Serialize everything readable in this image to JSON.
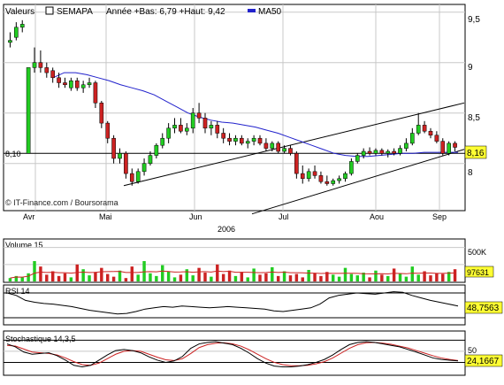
{
  "header": {
    "valeurs_label": "Valeurs",
    "ticker": "SEMAPA",
    "range_text": "Année +Bas: 6,79 +Haut: 9,42",
    "ma_label": "MA50"
  },
  "colors": {
    "up": "#22cc22",
    "down": "#cc2222",
    "ma": "#2222cc",
    "line": "#000000",
    "signal": "#cc2222",
    "grid": "#c8c8c8",
    "label_box": "#ffff33"
  },
  "price": {
    "y_ticks": [
      "9,5",
      "9",
      "8,5",
      "8"
    ],
    "ref_label": "8,10",
    "last_label": "8,16",
    "watermark": "© IT-Finance.com / Boursorama",
    "x_months": [
      "Avr",
      "Mai",
      "Jun",
      "Jul",
      "Aou",
      "Sep"
    ],
    "year_label": "2006"
  },
  "volume": {
    "title": "Volume 15",
    "tick": "500K",
    "last_label": "97631"
  },
  "rsi": {
    "title": "RSI 14",
    "last_label": "48,7563"
  },
  "stoch": {
    "title": "Stochastique 14,3,5",
    "tick": "50",
    "last_label": "24,1667"
  },
  "chart_data": {
    "type": "candlestick",
    "price_ylim": [
      7.55,
      9.55
    ],
    "reference_level": 8.1,
    "last_close": 8.16,
    "candles": [
      [
        9.2,
        9.3,
        9.15,
        9.22
      ],
      [
        9.25,
        9.4,
        9.22,
        9.35
      ],
      [
        9.35,
        9.42,
        9.3,
        9.38
      ],
      [
        8.1,
        8.95,
        8.1,
        8.95
      ],
      [
        8.95,
        9.15,
        8.9,
        9.0
      ],
      [
        9.0,
        9.12,
        8.9,
        8.95
      ],
      [
        8.95,
        9.0,
        8.85,
        8.9
      ],
      [
        8.92,
        8.95,
        8.8,
        8.85
      ],
      [
        8.85,
        8.9,
        8.75,
        8.8
      ],
      [
        8.8,
        8.85,
        8.75,
        8.78
      ],
      [
        8.75,
        8.85,
        8.72,
        8.82
      ],
      [
        8.82,
        8.85,
        8.72,
        8.75
      ],
      [
        8.75,
        8.82,
        8.7,
        8.78
      ],
      [
        8.78,
        8.85,
        8.75,
        8.8
      ],
      [
        8.8,
        8.82,
        8.55,
        8.6
      ],
      [
        8.6,
        8.62,
        8.35,
        8.4
      ],
      [
        8.4,
        8.42,
        8.2,
        8.25
      ],
      [
        8.25,
        8.28,
        8.0,
        8.05
      ],
      [
        8.05,
        8.15,
        8.0,
        8.1
      ],
      [
        8.1,
        8.12,
        7.85,
        7.9
      ],
      [
        7.9,
        7.95,
        7.78,
        7.82
      ],
      [
        7.82,
        7.95,
        7.8,
        7.92
      ],
      [
        7.92,
        8.05,
        7.88,
        8.0
      ],
      [
        8.0,
        8.12,
        7.98,
        8.08
      ],
      [
        8.08,
        8.2,
        8.05,
        8.18
      ],
      [
        8.18,
        8.3,
        8.15,
        8.25
      ],
      [
        8.25,
        8.4,
        8.2,
        8.35
      ],
      [
        8.35,
        8.45,
        8.3,
        8.38
      ],
      [
        8.38,
        8.45,
        8.3,
        8.32
      ],
      [
        8.32,
        8.4,
        8.28,
        8.35
      ],
      [
        8.35,
        8.55,
        8.3,
        8.5
      ],
      [
        8.5,
        8.6,
        8.4,
        8.45
      ],
      [
        8.45,
        8.5,
        8.3,
        8.35
      ],
      [
        8.35,
        8.42,
        8.28,
        8.38
      ],
      [
        8.38,
        8.42,
        8.25,
        8.3
      ],
      [
        8.3,
        8.35,
        8.2,
        8.25
      ],
      [
        8.25,
        8.3,
        8.18,
        8.22
      ],
      [
        8.22,
        8.28,
        8.18,
        8.25
      ],
      [
        8.25,
        8.28,
        8.18,
        8.2
      ],
      [
        8.2,
        8.25,
        8.15,
        8.22
      ],
      [
        8.22,
        8.28,
        8.18,
        8.25
      ],
      [
        8.25,
        8.28,
        8.18,
        8.2
      ],
      [
        8.2,
        8.25,
        8.12,
        8.15
      ],
      [
        8.15,
        8.22,
        8.12,
        8.2
      ],
      [
        8.2,
        8.22,
        8.1,
        8.12
      ],
      [
        8.12,
        8.18,
        8.1,
        8.15
      ],
      [
        8.15,
        8.18,
        8.08,
        8.1
      ],
      [
        8.1,
        8.12,
        7.85,
        7.9
      ],
      [
        7.9,
        7.98,
        7.8,
        7.85
      ],
      [
        7.85,
        7.95,
        7.82,
        7.92
      ],
      [
        7.92,
        7.98,
        7.85,
        7.88
      ],
      [
        7.88,
        7.92,
        7.8,
        7.82
      ],
      [
        7.82,
        7.88,
        7.78,
        7.8
      ],
      [
        7.8,
        7.85,
        7.78,
        7.83
      ],
      [
        7.83,
        7.88,
        7.8,
        7.85
      ],
      [
        7.85,
        7.92,
        7.82,
        7.9
      ],
      [
        7.9,
        8.05,
        7.88,
        8.02
      ],
      [
        8.02,
        8.1,
        8.0,
        8.08
      ],
      [
        8.08,
        8.15,
        8.05,
        8.12
      ],
      [
        8.12,
        8.16,
        8.08,
        8.1
      ],
      [
        8.1,
        8.15,
        8.08,
        8.13
      ],
      [
        8.13,
        8.15,
        8.08,
        8.1
      ],
      [
        8.1,
        8.14,
        8.06,
        8.12
      ],
      [
        8.12,
        8.15,
        8.08,
        8.1
      ],
      [
        8.1,
        8.18,
        8.08,
        8.15
      ],
      [
        8.15,
        8.25,
        8.12,
        8.2
      ],
      [
        8.2,
        8.35,
        8.18,
        8.3
      ],
      [
        8.3,
        8.5,
        8.28,
        8.38
      ],
      [
        8.38,
        8.42,
        8.3,
        8.32
      ],
      [
        8.32,
        8.35,
        8.25,
        8.28
      ],
      [
        8.28,
        8.32,
        8.2,
        8.22
      ],
      [
        8.22,
        8.25,
        8.08,
        8.1
      ],
      [
        8.1,
        8.22,
        8.08,
        8.2
      ],
      [
        8.2,
        8.22,
        8.12,
        8.16
      ]
    ],
    "ma50": [
      8.85,
      8.9,
      8.9,
      8.88,
      8.85,
      8.82,
      8.78,
      8.75,
      8.72,
      8.68,
      8.62,
      8.56,
      8.5,
      8.46,
      8.43,
      8.41,
      8.4,
      8.38,
      8.36,
      8.33,
      8.3,
      8.26,
      8.22,
      8.18,
      8.14,
      8.1,
      8.08,
      8.07,
      8.07,
      8.08,
      8.09,
      8.1,
      8.1,
      8.11,
      8.11,
      8.11,
      8.11
    ],
    "channel_upper": [
      [
        7.78,
        8.1
      ],
      [
        8.14,
        8.6
      ]
    ],
    "channel_lower": [
      [
        7.5,
        7.8
      ],
      [
        8.08,
        8.14
      ]
    ],
    "volume": [
      5,
      8,
      6,
      12,
      30,
      22,
      10,
      15,
      8,
      12,
      6,
      25,
      18,
      9,
      14,
      20,
      11,
      7,
      16,
      5,
      22,
      10,
      30,
      12,
      8,
      24,
      15,
      6,
      10,
      18,
      9,
      20,
      13,
      7,
      25,
      11,
      16,
      8,
      14,
      6,
      19,
      10,
      12,
      21,
      8,
      15,
      9,
      11,
      6,
      17,
      12,
      8,
      14,
      10,
      7,
      20,
      11,
      9,
      13,
      6,
      16,
      10,
      8,
      19,
      12,
      7,
      22,
      10,
      15,
      9,
      12,
      11,
      14,
      18
    ],
    "volume_ylim": [
      0,
      600
    ],
    "rsi": [
      70,
      66,
      58,
      55,
      53,
      52,
      50,
      48,
      45,
      42,
      40,
      38,
      36,
      37,
      40,
      44,
      46,
      48,
      47,
      49,
      48,
      47,
      46,
      47,
      48,
      47,
      46,
      45,
      44,
      41,
      40,
      42,
      44,
      46,
      52,
      62,
      66,
      68,
      70,
      69,
      68,
      70,
      72,
      71,
      66,
      62,
      58,
      55,
      52,
      49
    ],
    "rsi_ylim": [
      20,
      80
    ],
    "stoch_k": [
      70,
      62,
      48,
      42,
      44,
      46,
      38,
      26,
      12,
      8,
      12,
      26,
      40,
      52,
      55,
      52,
      46,
      35,
      26,
      20,
      24,
      36,
      58,
      70,
      74,
      76,
      72,
      68,
      58,
      45,
      30,
      18,
      10,
      8,
      8,
      10,
      14,
      20,
      28,
      40,
      55,
      68,
      74,
      76,
      74,
      70,
      66,
      62,
      55,
      48,
      40,
      32,
      28,
      26,
      24
    ],
    "stoch_d": [
      66,
      64,
      56,
      48,
      46,
      44,
      40,
      32,
      22,
      14,
      12,
      18,
      30,
      42,
      50,
      52,
      50,
      42,
      34,
      27,
      25,
      30,
      44,
      60,
      68,
      72,
      73,
      70,
      64,
      54,
      42,
      30,
      20,
      14,
      11,
      11,
      12,
      16,
      22,
      32,
      45,
      58,
      68,
      73,
      74,
      72,
      69,
      64,
      59,
      52,
      45,
      38,
      32,
      28,
      25
    ],
    "stoch_ylim": [
      -10,
      100
    ]
  }
}
